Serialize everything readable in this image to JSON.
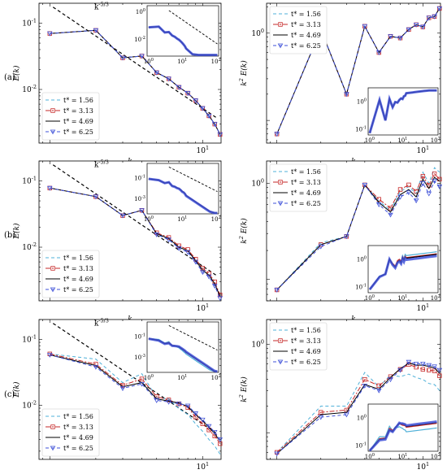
{
  "figure": {
    "row_labels": [
      "(a)",
      "(b)",
      "(c)"
    ],
    "legend_entries": [
      {
        "label": "t* = 1.56",
        "color": "#4fb0d8",
        "dash": "4,3",
        "marker": "none"
      },
      {
        "label": "t* = 3.13",
        "color": "#c62828",
        "dash": "6,2,2,2",
        "marker": "square"
      },
      {
        "label": "t* = 4.69",
        "color": "#000000",
        "dash": "",
        "marker": "none"
      },
      {
        "label": "t* = 6.25",
        "color": "#3f51d8",
        "dash": "4,3",
        "marker": "triangle"
      }
    ],
    "annotation": "k^{-5/3}"
  },
  "chart_data": [
    {
      "id": "a-left",
      "type": "line",
      "row": "(a)",
      "panel": "E(k)",
      "xlabel": "k",
      "ylabel": "E(k)",
      "xscale": "log",
      "yscale": "log",
      "xlim": [
        0.85,
        13.2
      ],
      "ylim": [
        0.00155,
        0.2
      ],
      "xticks": [
        {
          "v": 10,
          "label": "10^1"
        }
      ],
      "yticks": [
        {
          "v": 0.01,
          "label": "10^-2"
        },
        {
          "v": 0.1,
          "label": "10^-1"
        }
      ],
      "reference_line": {
        "label": "k^{-5/3}",
        "x": [
          1.05,
          12.2
        ],
        "y": [
          0.175,
          0.0038
        ]
      },
      "legend_position": "lower-left",
      "x": [
        1,
        2,
        3,
        4,
        5,
        6,
        7,
        8,
        9,
        10,
        11,
        12,
        13
      ],
      "series": [
        {
          "name": "t* = 1.56",
          "values": [
            0.07,
            0.078,
            0.03,
            0.032,
            0.018,
            0.0145,
            0.0108,
            0.0088,
            0.0068,
            0.0052,
            0.004,
            0.003,
            0.0021
          ]
        },
        {
          "name": "t* = 3.13",
          "values": [
            0.07,
            0.078,
            0.03,
            0.032,
            0.018,
            0.0145,
            0.0108,
            0.0088,
            0.0068,
            0.0052,
            0.004,
            0.003,
            0.0021
          ]
        },
        {
          "name": "t* = 4.69",
          "values": [
            0.07,
            0.078,
            0.03,
            0.032,
            0.018,
            0.0145,
            0.0108,
            0.0088,
            0.0068,
            0.0052,
            0.004,
            0.003,
            0.0021
          ]
        },
        {
          "name": "t* = 6.25",
          "values": [
            0.07,
            0.078,
            0.03,
            0.032,
            0.018,
            0.0145,
            0.0108,
            0.0088,
            0.0068,
            0.0052,
            0.004,
            0.003,
            0.0021
          ]
        }
      ],
      "inset": {
        "xlim": [
          0.9,
          120
        ],
        "ylim": [
          0.0006,
          2.5
        ],
        "xticks": [
          {
            "v": 1,
            "label": "10^0"
          },
          {
            "v": 10,
            "label": "10^1"
          },
          {
            "v": 100,
            "label": "10^2"
          }
        ],
        "yticks": [
          {
            "v": 0.01,
            "label": "10^-2"
          },
          {
            "v": 1,
            "label": "10^0"
          }
        ]
      }
    },
    {
      "id": "a-right",
      "type": "line",
      "row": "(a)",
      "panel": "k^2 E(k)",
      "xlabel": "k",
      "ylabel": "k^2 E(k)",
      "xscale": "log",
      "yscale": "log",
      "xlim": [
        0.85,
        13.2
      ],
      "ylim": [
        0.055,
        2.2
      ],
      "xticks": [
        {
          "v": 10,
          "label": "10^1"
        }
      ],
      "yticks": [
        {
          "v": 1,
          "label": "10^0"
        }
      ],
      "legend_position": "upper-left",
      "x": [
        1,
        2,
        3,
        4,
        5,
        6,
        7,
        8,
        9,
        10,
        11,
        12,
        13
      ],
      "series": [
        {
          "name": "t* = 1.56",
          "values": [
            0.07,
            1.1,
            0.2,
            1.2,
            0.6,
            0.92,
            0.88,
            1.1,
            1.25,
            1.18,
            1.5,
            1.55,
            1.92
          ]
        },
        {
          "name": "t* = 3.13",
          "values": [
            0.07,
            1.1,
            0.2,
            1.2,
            0.6,
            0.92,
            0.88,
            1.1,
            1.25,
            1.18,
            1.5,
            1.55,
            1.92
          ]
        },
        {
          "name": "t* = 4.69",
          "values": [
            0.07,
            1.1,
            0.2,
            1.2,
            0.6,
            0.92,
            0.88,
            1.1,
            1.25,
            1.18,
            1.5,
            1.55,
            1.92
          ]
        },
        {
          "name": "t* = 6.25",
          "values": [
            0.07,
            1.1,
            0.2,
            1.2,
            0.6,
            0.92,
            0.88,
            1.1,
            1.25,
            1.18,
            1.5,
            1.55,
            1.92
          ]
        }
      ],
      "inset": {
        "xlim": [
          0.9,
          120
        ],
        "ylim": [
          0.06,
          3
        ],
        "xticks": [
          {
            "v": 1,
            "label": "10^0"
          },
          {
            "v": 10,
            "label": "10^1"
          },
          {
            "v": 100,
            "label": "10^2"
          }
        ],
        "yticks": [
          {
            "v": 0.1,
            "label": "10^-1"
          },
          {
            "v": 1,
            "label": "10^0"
          }
        ]
      }
    },
    {
      "id": "b-left",
      "type": "line",
      "row": "(b)",
      "panel": "E(k)",
      "xlabel": "k",
      "ylabel": "E(k)",
      "xscale": "log",
      "yscale": "log",
      "xlim": [
        0.85,
        13.2
      ],
      "ylim": [
        0.00155,
        0.2
      ],
      "xticks": [
        {
          "v": 10,
          "label": "10^1"
        }
      ],
      "yticks": [
        {
          "v": 0.01,
          "label": "10^-2"
        },
        {
          "v": 0.1,
          "label": "10^-1"
        }
      ],
      "reference_line": {
        "label": "k^{-5/3}",
        "x": [
          1.05,
          12.2
        ],
        "y": [
          0.175,
          0.0038
        ]
      },
      "legend_position": "lower-left",
      "x": [
        1,
        2,
        3,
        4,
        5,
        6,
        7,
        8,
        9,
        10,
        11,
        12,
        13
      ],
      "series": [
        {
          "name": "t* = 1.56",
          "values": [
            0.078,
            0.058,
            0.03,
            0.036,
            0.016,
            0.0135,
            0.01,
            0.0088,
            0.0063,
            0.0045,
            0.0038,
            0.0028,
            0.0018
          ]
        },
        {
          "name": "t* = 3.13",
          "values": [
            0.078,
            0.058,
            0.03,
            0.036,
            0.0165,
            0.014,
            0.0105,
            0.0092,
            0.0066,
            0.0048,
            0.004,
            0.003,
            0.0019
          ]
        },
        {
          "name": "t* = 4.69",
          "values": [
            0.078,
            0.058,
            0.03,
            0.036,
            0.016,
            0.0135,
            0.01,
            0.0088,
            0.0063,
            0.0045,
            0.0038,
            0.0028,
            0.0018
          ]
        },
        {
          "name": "t* = 6.25",
          "values": [
            0.078,
            0.058,
            0.03,
            0.036,
            0.0155,
            0.013,
            0.0096,
            0.0084,
            0.006,
            0.0042,
            0.0036,
            0.0026,
            0.0017
          ]
        }
      ],
      "inset": {
        "xlim": [
          0.9,
          120
        ],
        "ylim": [
          3e-05,
          2.5
        ],
        "xticks": [
          {
            "v": 1,
            "label": "10^0"
          },
          {
            "v": 10,
            "label": "10^1"
          },
          {
            "v": 100,
            "label": "10^2"
          }
        ],
        "yticks": [
          {
            "v": 0.001,
            "label": "10^-3"
          },
          {
            "v": 0.1,
            "label": "10^-1"
          }
        ]
      }
    },
    {
      "id": "b-right",
      "type": "line",
      "row": "(b)",
      "panel": "k^2 E(k)",
      "xlabel": "k",
      "ylabel": "k^2 E(k)",
      "xscale": "log",
      "yscale": "log",
      "xlim": [
        0.85,
        13.2
      ],
      "ylim": [
        0.06,
        1.7
      ],
      "xticks": [
        {
          "v": 10,
          "label": "10^1"
        }
      ],
      "yticks": [
        {
          "v": 1,
          "label": "10^0"
        }
      ],
      "legend_position": "upper-left",
      "x": [
        1,
        2,
        3,
        4,
        5,
        6,
        7,
        8,
        9,
        10,
        11,
        12,
        13
      ],
      "series": [
        {
          "name": "t* = 1.56",
          "values": [
            0.078,
            0.24,
            0.28,
            0.96,
            0.65,
            0.52,
            0.82,
            0.92,
            0.78,
            1.3,
            1.0,
            1.45,
            1.3
          ]
        },
        {
          "name": "t* = 3.13",
          "values": [
            0.078,
            0.23,
            0.28,
            0.96,
            0.68,
            0.55,
            0.86,
            0.96,
            0.82,
            1.18,
            0.95,
            1.25,
            1.1
          ]
        },
        {
          "name": "t* = 4.69",
          "values": [
            0.078,
            0.23,
            0.28,
            0.96,
            0.63,
            0.5,
            0.76,
            0.86,
            0.72,
            1.1,
            0.88,
            1.15,
            1.05
          ]
        },
        {
          "name": "t* = 6.25",
          "values": [
            0.078,
            0.22,
            0.28,
            0.96,
            0.6,
            0.47,
            0.72,
            0.8,
            0.66,
            1.0,
            0.78,
            1.05,
            0.92
          ]
        }
      ],
      "inset": {
        "xlim": [
          0.9,
          120
        ],
        "ylim": [
          0.06,
          3
        ],
        "xticks": [
          {
            "v": 1,
            "label": "10^0"
          },
          {
            "v": 10,
            "label": "10^1"
          },
          {
            "v": 100,
            "label": "10^2"
          }
        ],
        "yticks": [
          {
            "v": 0.1,
            "label": "10^-1"
          },
          {
            "v": 1,
            "label": "10^0"
          }
        ]
      }
    },
    {
      "id": "c-left",
      "type": "line",
      "row": "(c)",
      "panel": "E(k)",
      "xlabel": "k",
      "ylabel": "E(k)",
      "xscale": "log",
      "yscale": "log",
      "xlim": [
        0.85,
        13.2
      ],
      "ylim": [
        0.0015,
        0.2
      ],
      "xticks": [
        {
          "v": 10,
          "label": "10^1"
        }
      ],
      "yticks": [
        {
          "v": 0.01,
          "label": "10^-2"
        },
        {
          "v": 0.1,
          "label": "10^-1"
        }
      ],
      "reference_line": {
        "label": "k^{-5/3}",
        "x": [
          1.05,
          12.2
        ],
        "y": [
          0.175,
          0.0038
        ]
      },
      "legend_position": "lower-left",
      "x": [
        1,
        2,
        3,
        4,
        5,
        6,
        7,
        8,
        9,
        10,
        11,
        12,
        13
      ],
      "series": [
        {
          "name": "t* = 1.56",
          "values": [
            0.06,
            0.05,
            0.022,
            0.03,
            0.013,
            0.0125,
            0.0088,
            0.0072,
            0.0052,
            0.004,
            0.003,
            0.0024,
            0.0018
          ]
        },
        {
          "name": "t* = 3.13",
          "values": [
            0.06,
            0.042,
            0.02,
            0.025,
            0.0135,
            0.012,
            0.0105,
            0.0092,
            0.0066,
            0.0052,
            0.0042,
            0.0034,
            0.0026
          ]
        },
        {
          "name": "t* = 4.69",
          "values": [
            0.058,
            0.04,
            0.019,
            0.022,
            0.0125,
            0.0115,
            0.0108,
            0.0095,
            0.0072,
            0.0058,
            0.0046,
            0.0037,
            0.0028
          ]
        },
        {
          "name": "t* = 6.25",
          "values": [
            0.058,
            0.038,
            0.018,
            0.021,
            0.0118,
            0.0112,
            0.0105,
            0.0098,
            0.0075,
            0.006,
            0.0048,
            0.0039,
            0.003
          ]
        }
      ],
      "inset": {
        "xlim": [
          0.9,
          120
        ],
        "ylim": [
          3e-05,
          2.5
        ],
        "xticks": [
          {
            "v": 1,
            "label": "10^0"
          },
          {
            "v": 10,
            "label": "10^1"
          },
          {
            "v": 100,
            "label": "10^2"
          }
        ],
        "yticks": [
          {
            "v": 0.001,
            "label": "10^-3"
          },
          {
            "v": 0.1,
            "label": "10^-1"
          }
        ]
      }
    },
    {
      "id": "c-right",
      "type": "line",
      "row": "(c)",
      "panel": "k^2 E(k)",
      "xlabel": "k",
      "ylabel": "k^2 E(k)",
      "xscale": "log",
      "yscale": "log",
      "xlim": [
        0.85,
        13.2
      ],
      "ylim": [
        0.05,
        1.9
      ],
      "xticks": [
        {
          "v": 10,
          "label": "10^1"
        }
      ],
      "yticks": [
        {
          "v": 1,
          "label": "10^0"
        }
      ],
      "legend_position": "upper-left",
      "x": [
        1,
        2,
        3,
        4,
        5,
        6,
        7,
        8,
        9,
        10,
        11,
        12,
        13
      ],
      "series": [
        {
          "name": "t* = 1.56",
          "values": [
            0.06,
            0.2,
            0.2,
            0.48,
            0.33,
            0.45,
            0.43,
            0.46,
            0.42,
            0.4,
            0.36,
            0.35,
            0.3
          ]
        },
        {
          "name": "t* = 3.13",
          "values": [
            0.06,
            0.17,
            0.18,
            0.4,
            0.34,
            0.43,
            0.52,
            0.59,
            0.55,
            0.52,
            0.51,
            0.5,
            0.44
          ]
        },
        {
          "name": "t* = 4.69",
          "values": [
            0.058,
            0.16,
            0.17,
            0.35,
            0.31,
            0.42,
            0.53,
            0.61,
            0.58,
            0.58,
            0.56,
            0.54,
            0.47
          ]
        },
        {
          "name": "t* = 6.25",
          "values": [
            0.058,
            0.15,
            0.16,
            0.34,
            0.3,
            0.4,
            0.51,
            0.63,
            0.6,
            0.6,
            0.58,
            0.56,
            0.51
          ]
        }
      ],
      "inset": {
        "xlim": [
          0.9,
          120
        ],
        "ylim": [
          0.06,
          3
        ],
        "xticks": [
          {
            "v": 1,
            "label": "10^0"
          },
          {
            "v": 10,
            "label": "10^1"
          },
          {
            "v": 100,
            "label": "10^2"
          }
        ],
        "yticks": [
          {
            "v": 0.1,
            "label": "10^-1"
          },
          {
            "v": 1,
            "label": "10^0"
          }
        ]
      }
    }
  ]
}
